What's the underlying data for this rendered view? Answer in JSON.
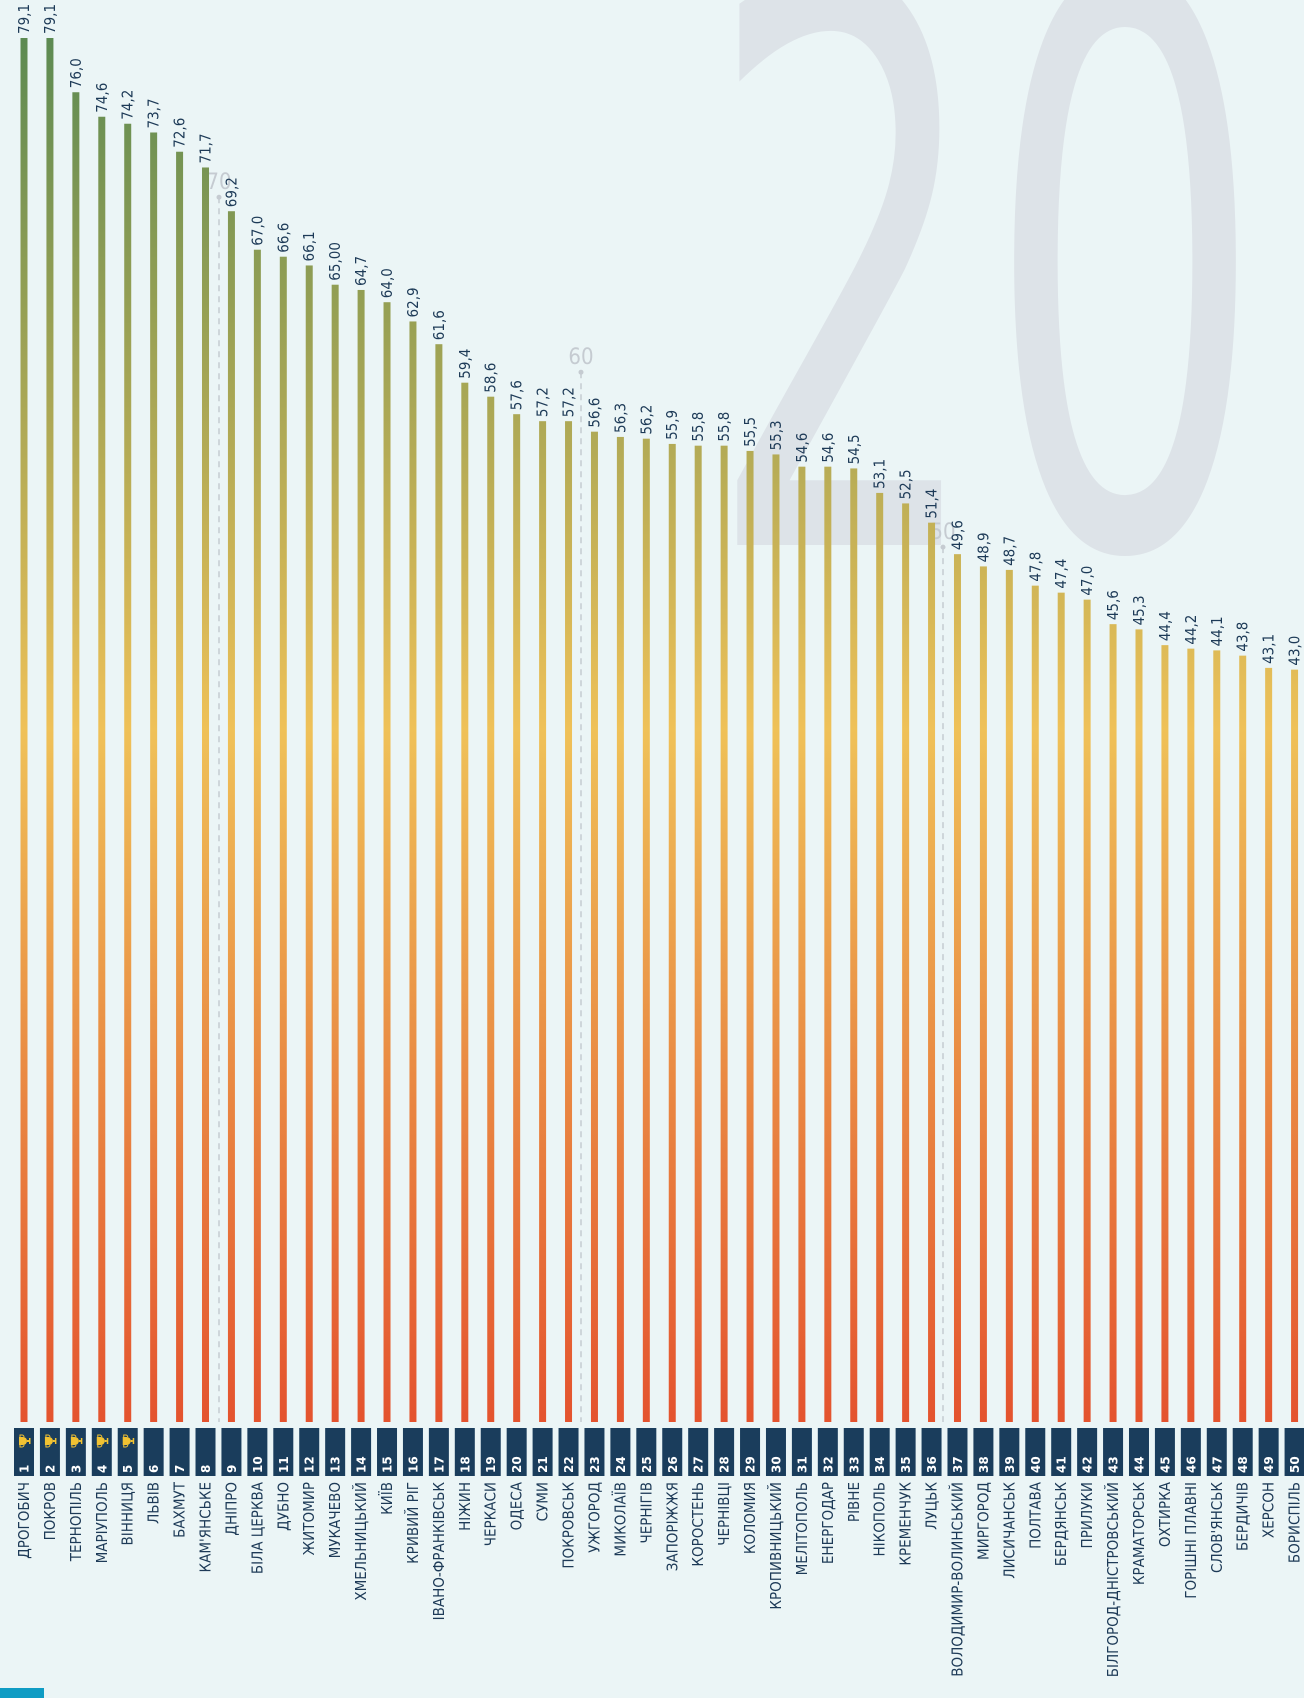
{
  "watermark": "20",
  "colors": {
    "background": "#ebf5f6",
    "bar_top": "#5c8a52",
    "bar_mid": "#efc158",
    "bar_bottom": "#e4532e",
    "rank_box": "#1a3d5c",
    "text": "#1d3a57",
    "trophy": "#f1c232",
    "gridline": "#c5cbd1",
    "corner_accent": "#0f9cc4"
  },
  "chart_data": {
    "type": "bar",
    "orientation": "vertical",
    "ylim": [
      0,
      79.1
    ],
    "gridlines": [
      {
        "value": 70,
        "label": "70"
      },
      {
        "value": 60,
        "label": "60"
      },
      {
        "value": 50,
        "label": "50"
      }
    ],
    "categories": [
      "ДРОГОБИЧ",
      "ПОКРОВ",
      "ТЕРНОПІЛЬ",
      "МАРІУПОЛЬ",
      "ВІННИЦЯ",
      "ЛЬВІВ",
      "БАХМУТ",
      "КАМ'ЯНСЬКЕ",
      "ДНІПРО",
      "БІЛА ЦЕРКВА",
      "ДУБНО",
      "ЖИТОМИР",
      "МУКАЧЕВО",
      "ХМЕЛЬНИЦЬКИЙ",
      "КИЇВ",
      "КРИВИЙ РІГ",
      "ІВАНО-ФРАНКІВСЬК",
      "НІЖИН",
      "ЧЕРКАСИ",
      "ОДЕСА",
      "СУМИ",
      "ПОКРОВСЬК",
      "УЖГОРОД",
      "МИКОЛАЇВ",
      "ЧЕРНІГІВ",
      "ЗАПОРІЖЖЯ",
      "КОРОСТЕНЬ",
      "ЧЕРНІВЦІ",
      "КОЛОМИЯ",
      "КРОПИВНИЦЬКИЙ",
      "МЕЛІТОПОЛЬ",
      "ЕНЕРГОДАР",
      "РІВНЕ",
      "НІКОПОЛЬ",
      "КРЕМЕНЧУК",
      "ЛУЦЬК",
      "ВОЛОДИМИР-ВОЛИНСЬКИЙ",
      "МИРГОРОД",
      "ЛИСИЧАНСЬК",
      "ПОЛТАВА",
      "БЕРДЯНСЬК",
      "ПРИЛУКИ",
      "БІЛГОРОД-ДНІСТРОВСЬКИЙ",
      "КРАМАТОРСЬК",
      "ОХТИРКА",
      "ГОРІШНІ ПЛАВНІ",
      "СЛОВ'ЯНСЬК",
      "БЕРДИЧІВ",
      "ХЕРСОН",
      "БОРИСПІЛЬ"
    ],
    "values": [
      79.1,
      79.1,
      76.0,
      74.6,
      74.2,
      73.7,
      72.6,
      71.7,
      69.2,
      67.0,
      66.6,
      66.1,
      65.0,
      64.7,
      64.0,
      62.9,
      61.6,
      59.4,
      58.6,
      57.6,
      57.2,
      57.2,
      56.6,
      56.3,
      56.2,
      55.9,
      55.8,
      55.8,
      55.5,
      55.3,
      54.6,
      54.6,
      54.5,
      53.1,
      52.5,
      51.4,
      49.6,
      48.9,
      48.7,
      47.8,
      47.4,
      47.0,
      45.6,
      45.3,
      44.4,
      44.2,
      44.1,
      43.8,
      43.1,
      43.0
    ],
    "value_labels": [
      "79,1",
      "79,1",
      "76,0",
      "74,6",
      "74,2",
      "73,7",
      "72,6",
      "71,7",
      "69,2",
      "67,0",
      "66,6",
      "66,1",
      "65,00",
      "64,7",
      "64,0",
      "62,9",
      "61,6",
      "59,4",
      "58,6",
      "57,6",
      "57,2",
      "57,2",
      "56,6",
      "56,3",
      "56,2",
      "55,9",
      "55,8",
      "55,8",
      "55,5",
      "55,3",
      "54,6",
      "54,6",
      "54,5",
      "53,1",
      "52,5",
      "51,4",
      "49,6",
      "48,9",
      "48,7",
      "47,8",
      "47,4",
      "47,0",
      "45,6",
      "45,3",
      "44,4",
      "44,2",
      "44,1",
      "43,8",
      "43,1",
      "43,0"
    ],
    "ranks": [
      "1",
      "2",
      "3",
      "4",
      "5",
      "6",
      "7",
      "8",
      "9",
      "10",
      "11",
      "12",
      "13",
      "14",
      "15",
      "16",
      "17",
      "18",
      "19",
      "20",
      "21",
      "22",
      "23",
      "24",
      "25",
      "26",
      "27",
      "28",
      "29",
      "30",
      "31",
      "32",
      "33",
      "34",
      "35",
      "36",
      "37",
      "38",
      "39",
      "40",
      "41",
      "42",
      "43",
      "44",
      "45",
      "46",
      "47",
      "48",
      "49",
      "50"
    ],
    "trophy_ranks": 5
  }
}
